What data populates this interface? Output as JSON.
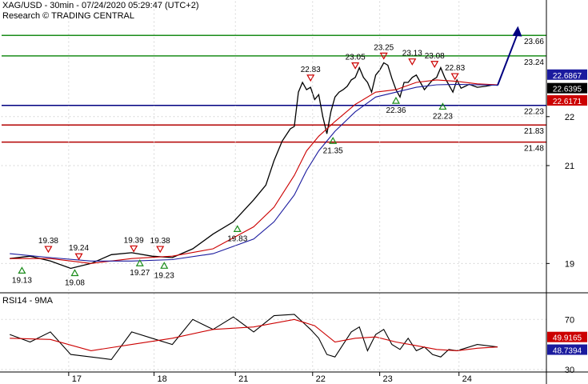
{
  "header": {
    "title": "XAG/USD - 30min - 07/24/2020 05:29:47 (UTC+2)",
    "source": "Research © TRADING CENTRAL"
  },
  "colors": {
    "price": "#000000",
    "ma_fast": "#cc0000",
    "ma_slow": "#1a1a9e",
    "resistance": "#1a8c1a",
    "pivot": "#000080",
    "support": "#b30000",
    "forecast_arrow": "#000080",
    "peak_marker": "#cc0000",
    "trough_marker": "#1a8c1a"
  },
  "chart_data": [
    {
      "type": "line",
      "name": "price",
      "y_axis": {
        "min": 18.45,
        "max": 24.35,
        "ticks": [
          19,
          21,
          22
        ]
      },
      "x_ticks": [
        "17",
        "18",
        "21",
        "22",
        "23",
        "24"
      ],
      "series": [
        {
          "name": "",
          "role": "price",
          "x": [
            0,
            0.5,
            1,
            1.5,
            2,
            2.5,
            3,
            3.5,
            4,
            4.5,
            5,
            5.5,
            6,
            6.3,
            6.5,
            6.7,
            6.9,
            7,
            7.1,
            7.2,
            7.3,
            7.4,
            7.5,
            7.6,
            7.7,
            7.8,
            7.9,
            8,
            8.1,
            8.2,
            8.3,
            8.4,
            8.5,
            8.6,
            8.7,
            8.8,
            8.9,
            9,
            9.1,
            9.2,
            9.3,
            9.4,
            9.5,
            9.6,
            9.7,
            9.8,
            9.9,
            10,
            10.1,
            10.2,
            10.3,
            10.4,
            10.5,
            10.6,
            10.7,
            10.8,
            10.9,
            11,
            11.1,
            11.2,
            11.3,
            11.5,
            11.7,
            11.9,
            12
          ],
          "values": [
            19.1,
            19.15,
            19.05,
            18.9,
            19.0,
            19.18,
            19.22,
            19.15,
            19.12,
            19.3,
            19.6,
            19.85,
            20.3,
            20.6,
            21.1,
            21.5,
            21.75,
            21.8,
            22.5,
            22.7,
            22.55,
            22.6,
            22.35,
            22.45,
            22.0,
            21.65,
            22.1,
            22.4,
            22.5,
            22.55,
            22.62,
            22.75,
            22.8,
            23.0,
            22.8,
            22.7,
            22.5,
            22.85,
            22.95,
            23.1,
            23.05,
            22.78,
            22.55,
            22.4,
            22.7,
            22.7,
            22.8,
            22.85,
            22.7,
            22.55,
            22.65,
            22.75,
            22.8,
            23.0,
            22.8,
            22.65,
            22.5,
            22.75,
            22.58,
            22.62,
            22.66,
            22.6,
            22.62,
            22.65,
            22.64
          ]
        },
        {
          "name": "",
          "role": "ma_fast",
          "x": [
            0,
            1,
            2,
            3,
            4,
            5,
            6,
            6.5,
            7,
            7.3,
            7.6,
            8,
            8.5,
            9,
            9.5,
            10,
            10.5,
            11,
            11.5,
            12
          ],
          "values": [
            19.1,
            19.1,
            19.0,
            19.1,
            19.15,
            19.3,
            19.75,
            20.15,
            20.8,
            21.3,
            21.6,
            21.9,
            22.25,
            22.5,
            22.55,
            22.7,
            22.75,
            22.72,
            22.67,
            22.65
          ]
        },
        {
          "name": "",
          "role": "ma_slow",
          "x": [
            0,
            1,
            2,
            3,
            4,
            5,
            6,
            6.5,
            7,
            7.3,
            7.6,
            8,
            8.5,
            9,
            9.5,
            10,
            10.5,
            11,
            11.5,
            12
          ],
          "values": [
            19.2,
            19.12,
            19.05,
            19.05,
            19.08,
            19.2,
            19.5,
            19.85,
            20.4,
            20.9,
            21.3,
            21.7,
            22.1,
            22.4,
            22.5,
            22.6,
            22.65,
            22.66,
            22.65,
            22.64
          ]
        }
      ],
      "forecast": {
        "from": [
          12,
          22.64
        ],
        "to": [
          12.5,
          23.85
        ]
      },
      "levels": [
        {
          "value": 23.66,
          "label": "23.66",
          "kind": "resistance"
        },
        {
          "value": 23.24,
          "label": "23.24",
          "kind": "resistance"
        },
        {
          "value": 22.23,
          "label": "22.23",
          "kind": "pivot"
        },
        {
          "value": 21.83,
          "label": "21.83",
          "kind": "support"
        },
        {
          "value": 21.48,
          "label": "21.48",
          "kind": "support"
        }
      ],
      "price_tags": [
        {
          "value": 22.6867,
          "label": "22.6867",
          "style": "blue"
        },
        {
          "value": 22.6395,
          "label": "22.6395",
          "style": "black"
        },
        {
          "value": 22.6171,
          "label": "22.6171",
          "style": "red"
        }
      ],
      "annotations": [
        {
          "label": "19.38",
          "x": 0.95,
          "value": 19.25,
          "kind": "peak"
        },
        {
          "label": "19.24",
          "x": 1.7,
          "value": 19.1,
          "kind": "peak"
        },
        {
          "label": "19.39",
          "x": 3.05,
          "value": 19.26,
          "kind": "peak"
        },
        {
          "label": "19.38",
          "x": 3.7,
          "value": 19.25,
          "kind": "peak"
        },
        {
          "label": "22.83",
          "x": 7.4,
          "value": 22.75,
          "kind": "peak"
        },
        {
          "label": "23.05",
          "x": 8.5,
          "value": 23.0,
          "kind": "peak"
        },
        {
          "label": "23.25",
          "x": 9.2,
          "value": 23.2,
          "kind": "peak"
        },
        {
          "label": "23.13",
          "x": 9.9,
          "value": 23.08,
          "kind": "peak"
        },
        {
          "label": "23.08",
          "x": 10.45,
          "value": 23.03,
          "kind": "peak"
        },
        {
          "label": "22.83",
          "x": 10.95,
          "value": 22.78,
          "kind": "peak"
        },
        {
          "label": "19.13",
          "x": 0.3,
          "value": 18.95,
          "kind": "trough"
        },
        {
          "label": "19.08",
          "x": 1.6,
          "value": 18.9,
          "kind": "trough"
        },
        {
          "label": "19.27",
          "x": 3.2,
          "value": 19.1,
          "kind": "trough"
        },
        {
          "label": "19.23",
          "x": 3.8,
          "value": 19.05,
          "kind": "trough"
        },
        {
          "label": "19.83",
          "x": 5.6,
          "value": 19.8,
          "kind": "trough"
        },
        {
          "label": "21.35",
          "x": 7.95,
          "value": 21.6,
          "kind": "trough"
        },
        {
          "label": "22.36",
          "x": 9.5,
          "value": 22.42,
          "kind": "trough"
        },
        {
          "label": "22.23",
          "x": 10.65,
          "value": 22.3,
          "kind": "trough"
        }
      ]
    },
    {
      "type": "line",
      "name": "RSI14 - 9MA",
      "title": "RSI14 - 9MA",
      "y_axis": {
        "min": 28,
        "max": 90,
        "ticks": [
          30,
          70
        ]
      },
      "series": [
        {
          "name": "",
          "role": "rsi",
          "x": [
            0,
            0.5,
            1,
            1.5,
            2,
            2.5,
            3,
            3.5,
            4,
            4.5,
            5,
            5.5,
            6,
            6.5,
            7,
            7.2,
            7.4,
            7.6,
            7.8,
            8,
            8.2,
            8.4,
            8.6,
            8.8,
            9,
            9.2,
            9.4,
            9.6,
            9.8,
            10,
            10.2,
            10.4,
            10.6,
            10.8,
            11,
            11.2,
            11.5,
            12
          ],
          "values": [
            58,
            52,
            60,
            42,
            40,
            38,
            60,
            55,
            50,
            70,
            62,
            72,
            60,
            73,
            74,
            68,
            62,
            55,
            42,
            40,
            50,
            60,
            64,
            45,
            58,
            62,
            50,
            46,
            55,
            45,
            48,
            42,
            40,
            46,
            45,
            47,
            50,
            48
          ]
        },
        {
          "name": "",
          "role": "rsi_ma",
          "x": [
            0,
            1,
            2,
            3,
            4,
            5,
            6,
            7,
            7.5,
            8,
            8.5,
            9,
            9.5,
            10,
            10.5,
            11,
            11.5,
            12
          ],
          "values": [
            55,
            54,
            45,
            50,
            55,
            62,
            64,
            70,
            65,
            52,
            55,
            56,
            52,
            49,
            46,
            45,
            47,
            48
          ]
        }
      ],
      "price_tags": [
        {
          "value": 49.9165,
          "label": "49.9165",
          "style": "red"
        },
        {
          "value": 48.7394,
          "label": "48.7394",
          "style": "blue"
        }
      ]
    }
  ]
}
